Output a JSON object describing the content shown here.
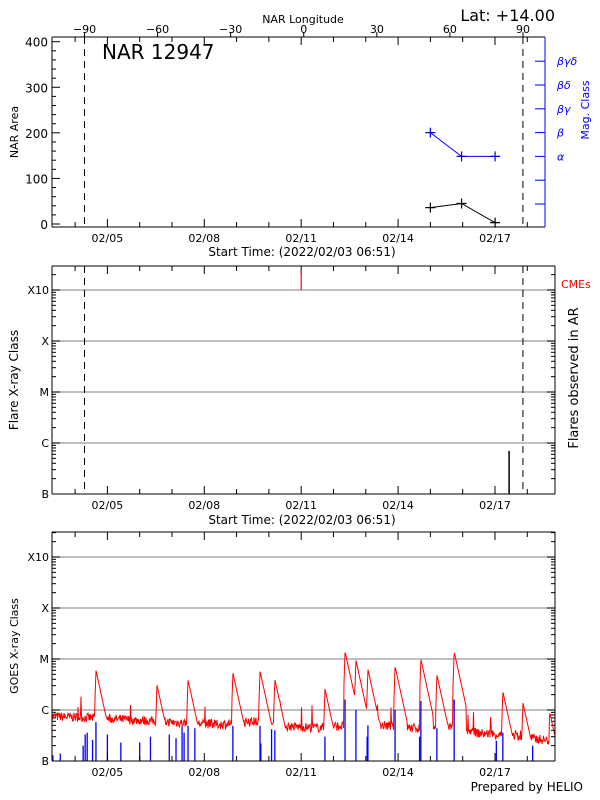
{
  "header": {
    "lat_label": "Lat: +14.00",
    "ar_title": "NAR 12947"
  },
  "colors": {
    "axis": "#000000",
    "mag_class": "#0000ff",
    "goes_long": "#ff0000",
    "goes_short": "#0000ff",
    "cme": "#ff0000",
    "grid": "#999999"
  },
  "footer": {
    "credit": "Prepared by HELIO"
  },
  "chart_data": [
    {
      "type": "line",
      "panel": "nar",
      "xlabel": "Start Time: (2022/02/03 06:51)",
      "x_start": "2022/02/03 06:51",
      "x_end": "2022/02/18 20:30",
      "x_ticks": [
        "02/05",
        "02/08",
        "02/11",
        "02/14",
        "02/17"
      ],
      "top_axis": {
        "label": "NAR Longitude",
        "ticks": [
          -90,
          -60,
          -30,
          0,
          30,
          60,
          90
        ],
        "range": [
          -103,
          103
        ]
      },
      "ylabel": "NAR Area",
      "ylim": [
        0,
        400
      ],
      "y_ticks": [
        0,
        100,
        200,
        300,
        400
      ],
      "limb_markers": [
        "02/04 07:00",
        "02/17 20:45"
      ],
      "area_series": {
        "x": [
          "02/15 00:00",
          "02/15 23:10",
          "02/17 00:05"
        ],
        "y": [
          36,
          45,
          3
        ]
      },
      "right_axis": {
        "label": "Mag. Class",
        "ticks": [
          "",
          "",
          "α",
          "β",
          "βγ",
          "βδ",
          "βγδ"
        ]
      },
      "mag_series": {
        "x": [
          "02/15 00:00",
          "02/15 23:10",
          "02/17 00:05"
        ],
        "y": [
          "β",
          "α",
          "α"
        ]
      }
    },
    {
      "type": "bar",
      "panel": "flares",
      "xlabel": "Start Time: (2022/02/03 06:51)",
      "x_ticks": [
        "02/05",
        "02/08",
        "02/11",
        "02/14",
        "02/17"
      ],
      "ylabel": "Flare X-ray Class",
      "y_scale": "log",
      "y_ticks": [
        "B",
        "C",
        "M",
        "X",
        "X10"
      ],
      "grid": true,
      "right_label": "Flares observed in AR",
      "cme_label": "CMEs",
      "limb_markers": [
        "02/04 07:00",
        "02/17 20:45"
      ],
      "flares": [
        {
          "time": "02/17 10:30",
          "class": "B7.0"
        }
      ],
      "cmes": [
        {
          "time": "02/11 00:00"
        }
      ]
    },
    {
      "type": "line",
      "panel": "goes",
      "ylabel": "GOES X-ray Class",
      "x_ticks": [
        "02/05",
        "02/08",
        "02/11",
        "02/14",
        "02/17"
      ],
      "y_scale": "log",
      "y_ticks": [
        "B",
        "C",
        "M",
        "X",
        "X10"
      ],
      "grid": true,
      "long_baseline": [
        [
          "02/03 06:51",
          "B7.5"
        ],
        [
          "02/04 12:00",
          "B7.0"
        ],
        [
          "02/05 12:00",
          "B6.5"
        ],
        [
          "02/06 12:00",
          "B6.0"
        ],
        [
          "02/07 12:00",
          "B5.5"
        ],
        [
          "02/08 12:00",
          "B5.2"
        ],
        [
          "02/09 12:00",
          "B6.0"
        ],
        [
          "02/10 12:00",
          "B4.8"
        ],
        [
          "02/11 12:00",
          "B4.5"
        ],
        [
          "02/12 12:00",
          "B5.0"
        ],
        [
          "02/13 12:00",
          "B5.0"
        ],
        [
          "02/14 12:00",
          "B4.4"
        ],
        [
          "02/15 12:00",
          "B5.0"
        ],
        [
          "02/16 12:00",
          "B3.5"
        ],
        [
          "02/17 12:00",
          "B3.2"
        ],
        [
          "02/18 12:00",
          "B2.6"
        ],
        [
          "02/18 20:30",
          "B2.4"
        ]
      ],
      "long_peaks": [
        [
          "02/04 15:30",
          "C6.0"
        ],
        [
          "02/06 12:50",
          "C3.1"
        ],
        [
          "02/07 11:55",
          "C3.9"
        ],
        [
          "02/08 21:15",
          "C5.4"
        ],
        [
          "02/09 17:25",
          "C5.8"
        ],
        [
          "02/10 04:25",
          "C4.0"
        ],
        [
          "02/11 17:40",
          "C2.6"
        ],
        [
          "02/12 08:35",
          "M1.4"
        ],
        [
          "02/12 16:40",
          "C9.5"
        ],
        [
          "02/13 01:35",
          "C6.3"
        ],
        [
          "02/13 21:45",
          "C7.2"
        ],
        [
          "02/14 16:55",
          "M1.0"
        ],
        [
          "02/15 04:50",
          "C4.9"
        ],
        [
          "02/15 17:40",
          "M1.4"
        ],
        [
          "02/17 05:50",
          "C2.3"
        ],
        [
          "02/17 20:45",
          "C1.4"
        ],
        [
          "02/18 16:50",
          "B8.7"
        ]
      ],
      "short_peaks": [
        [
          "02/03 07:30",
          "B1.3"
        ],
        [
          "02/03 13:00",
          "B1.4"
        ],
        [
          "02/04 06:00",
          "B2.0"
        ],
        [
          "02/04 07:30",
          "B3.3"
        ],
        [
          "02/04 09:00",
          "B3.6"
        ],
        [
          "02/04 13:00",
          "B2.6"
        ],
        [
          "02/04 15:30",
          "B5.8"
        ],
        [
          "02/05 00:00",
          "B3.3"
        ],
        [
          "02/05 10:00",
          "B2.3"
        ],
        [
          "02/06 00:00",
          "B2.3"
        ],
        [
          "02/06 08:00",
          "B3.0"
        ],
        [
          "02/06 22:00",
          "B3.3"
        ],
        [
          "02/07 03:00",
          "B2.8"
        ],
        [
          "02/07 07:30",
          "B4.8"
        ],
        [
          "02/07 09:00",
          "B3.6"
        ],
        [
          "02/07 11:55",
          "B4.9"
        ],
        [
          "02/07 17:00",
          "B4.4"
        ],
        [
          "02/08 21:15",
          "B4.9"
        ],
        [
          "02/09 17:25",
          "B4.9"
        ],
        [
          "02/09 18:00",
          "B2.2"
        ],
        [
          "02/10 02:00",
          "B4.2"
        ],
        [
          "02/10 04:25",
          "B4.0"
        ],
        [
          "02/11 17:40",
          "B3.0"
        ],
        [
          "02/12 08:35",
          "C1.6"
        ],
        [
          "02/12 16:40",
          "C1.0"
        ],
        [
          "02/13 01:00",
          "B3.0"
        ],
        [
          "02/13 01:35",
          "B5.0"
        ],
        [
          "02/13 21:45",
          "C1.0"
        ],
        [
          "02/14 16:00",
          "B3.0"
        ],
        [
          "02/14 16:55",
          "C1.5"
        ],
        [
          "02/15 04:50",
          "B4.4"
        ],
        [
          "02/15 17:40",
          "C1.6"
        ],
        [
          "02/17 01:00",
          "B2.5"
        ],
        [
          "02/17 05:50",
          "B3.6"
        ],
        [
          "02/18 04:00",
          "B2.0"
        ]
      ]
    }
  ]
}
